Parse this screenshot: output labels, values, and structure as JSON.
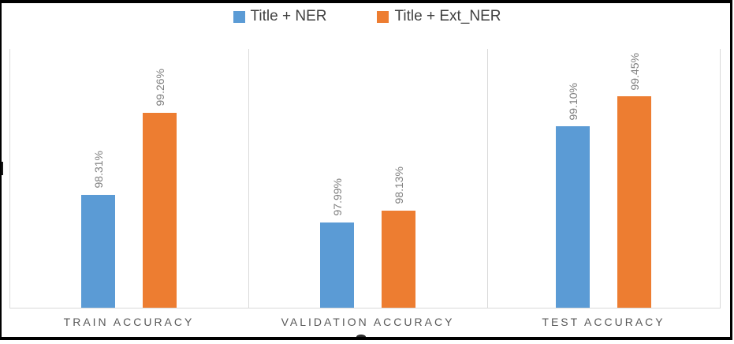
{
  "chart_data": {
    "type": "bar",
    "title": "",
    "xlabel": "",
    "ylabel": "",
    "categories": [
      "TRAIN ACCURACY",
      "VALIDATION ACCURACY",
      "TEST ACCURACY"
    ],
    "series": [
      {
        "name": "Title + NER",
        "color": "#5b9bd5",
        "values": [
          98.31,
          97.99,
          99.1
        ],
        "labels": [
          "98.31%",
          "97.99%",
          "99.10%"
        ]
      },
      {
        "name": "Title + Ext_NER",
        "color": "#ed7d31",
        "values": [
          99.26,
          98.13,
          99.45
        ],
        "labels": [
          "99.26%",
          "98.13%",
          "99.45%"
        ]
      }
    ],
    "ylim": [
      97,
      100
    ],
    "y_axis_visible": false,
    "grid": "vertical-category-separators-only",
    "legend_position": "top",
    "data_label_rotation_deg": 90
  },
  "colors": {
    "series_blue": "#5b9bd5",
    "series_orange": "#ed7d31",
    "axis_line": "#d9d9d9",
    "data_label_text": "#808080",
    "category_text": "#595959",
    "legend_text": "#404040",
    "frame_border": "#000000"
  }
}
